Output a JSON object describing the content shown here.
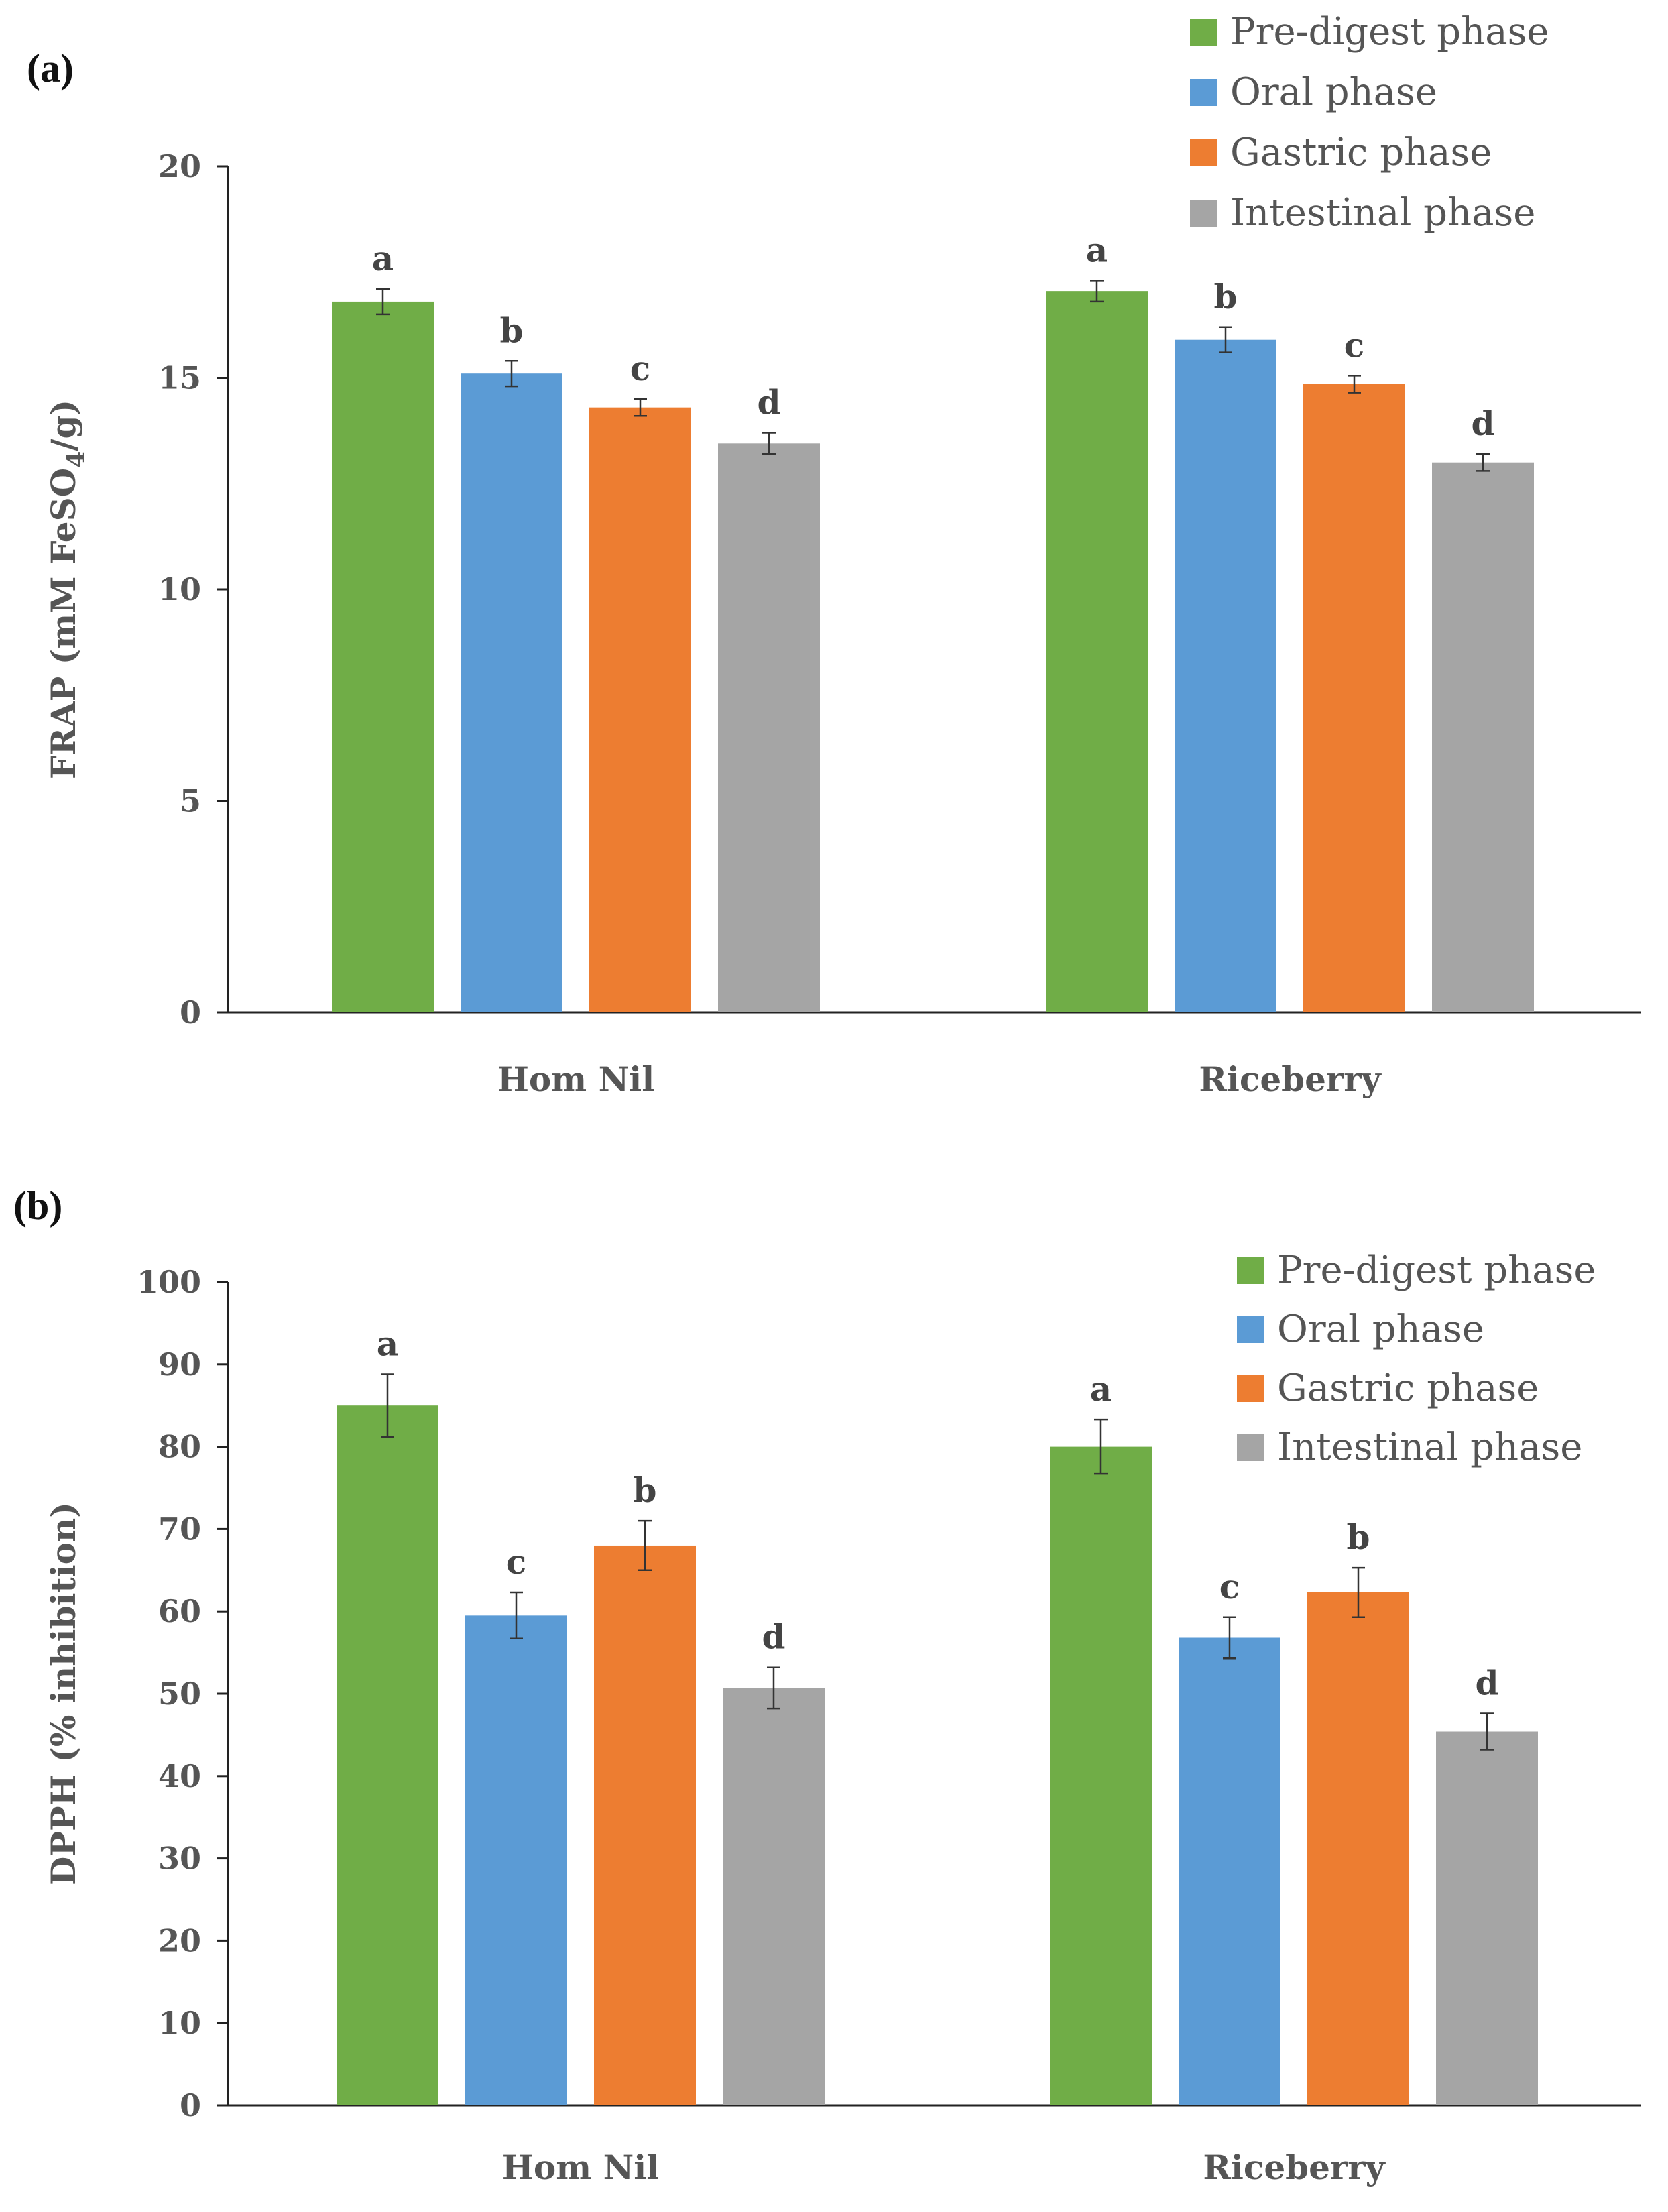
{
  "chart_data": [
    {
      "type": "bar",
      "panel_label": "(a)",
      "title": "",
      "xlabel": "",
      "ylabel": "FRAP (mM FeSO",
      "ylabel_sub": "4",
      "ylabel_suffix": "/g)",
      "ylim": [
        0,
        20
      ],
      "yticks": [
        0,
        5,
        10,
        15,
        20
      ],
      "categories": [
        "Hom Nil",
        "Riceberry"
      ],
      "legend_position": "top-right",
      "series": [
        {
          "name": "Pre-digest phase",
          "color": "#70ad47",
          "values": [
            16.8,
            17.05
          ],
          "errors": [
            0.3,
            0.25
          ],
          "letters": [
            "a",
            "a"
          ]
        },
        {
          "name": "Oral phase",
          "color": "#5b9bd5",
          "values": [
            15.1,
            15.9
          ],
          "errors": [
            0.3,
            0.3
          ],
          "letters": [
            "b",
            "b"
          ]
        },
        {
          "name": "Gastric phase",
          "color": "#ed7d31",
          "values": [
            14.3,
            14.85
          ],
          "errors": [
            0.2,
            0.2
          ],
          "letters": [
            "c",
            "c"
          ]
        },
        {
          "name": "Intestinal phase",
          "color": "#a5a5a5",
          "values": [
            13.45,
            13.0
          ],
          "errors": [
            0.25,
            0.2
          ],
          "letters": [
            "d",
            "d"
          ]
        }
      ]
    },
    {
      "type": "bar",
      "panel_label": "(b)",
      "title": "",
      "xlabel": "",
      "ylabel": "DPPH (% inhibition)",
      "ylabel_sub": "",
      "ylabel_suffix": "",
      "ylim": [
        0,
        100
      ],
      "yticks": [
        0,
        10,
        20,
        30,
        40,
        50,
        60,
        70,
        80,
        90,
        100
      ],
      "categories": [
        "Hom Nil",
        "Riceberry"
      ],
      "legend_position": "top-right",
      "series": [
        {
          "name": "Pre-digest phase",
          "color": "#70ad47",
          "values": [
            85.0,
            80.0
          ],
          "errors": [
            3.8,
            3.3
          ],
          "letters": [
            "a",
            "a"
          ]
        },
        {
          "name": "Oral phase",
          "color": "#5b9bd5",
          "values": [
            59.5,
            56.8
          ],
          "errors": [
            2.8,
            2.5
          ],
          "letters": [
            "c",
            "c"
          ]
        },
        {
          "name": "Gastric phase",
          "color": "#ed7d31",
          "values": [
            68.0,
            62.3
          ],
          "errors": [
            3.0,
            3.0
          ],
          "letters": [
            "b",
            "b"
          ]
        },
        {
          "name": "Intestinal phase",
          "color": "#a5a5a5",
          "values": [
            50.7,
            45.4
          ],
          "errors": [
            2.5,
            2.2
          ],
          "letters": [
            "d",
            "d"
          ]
        }
      ]
    }
  ]
}
